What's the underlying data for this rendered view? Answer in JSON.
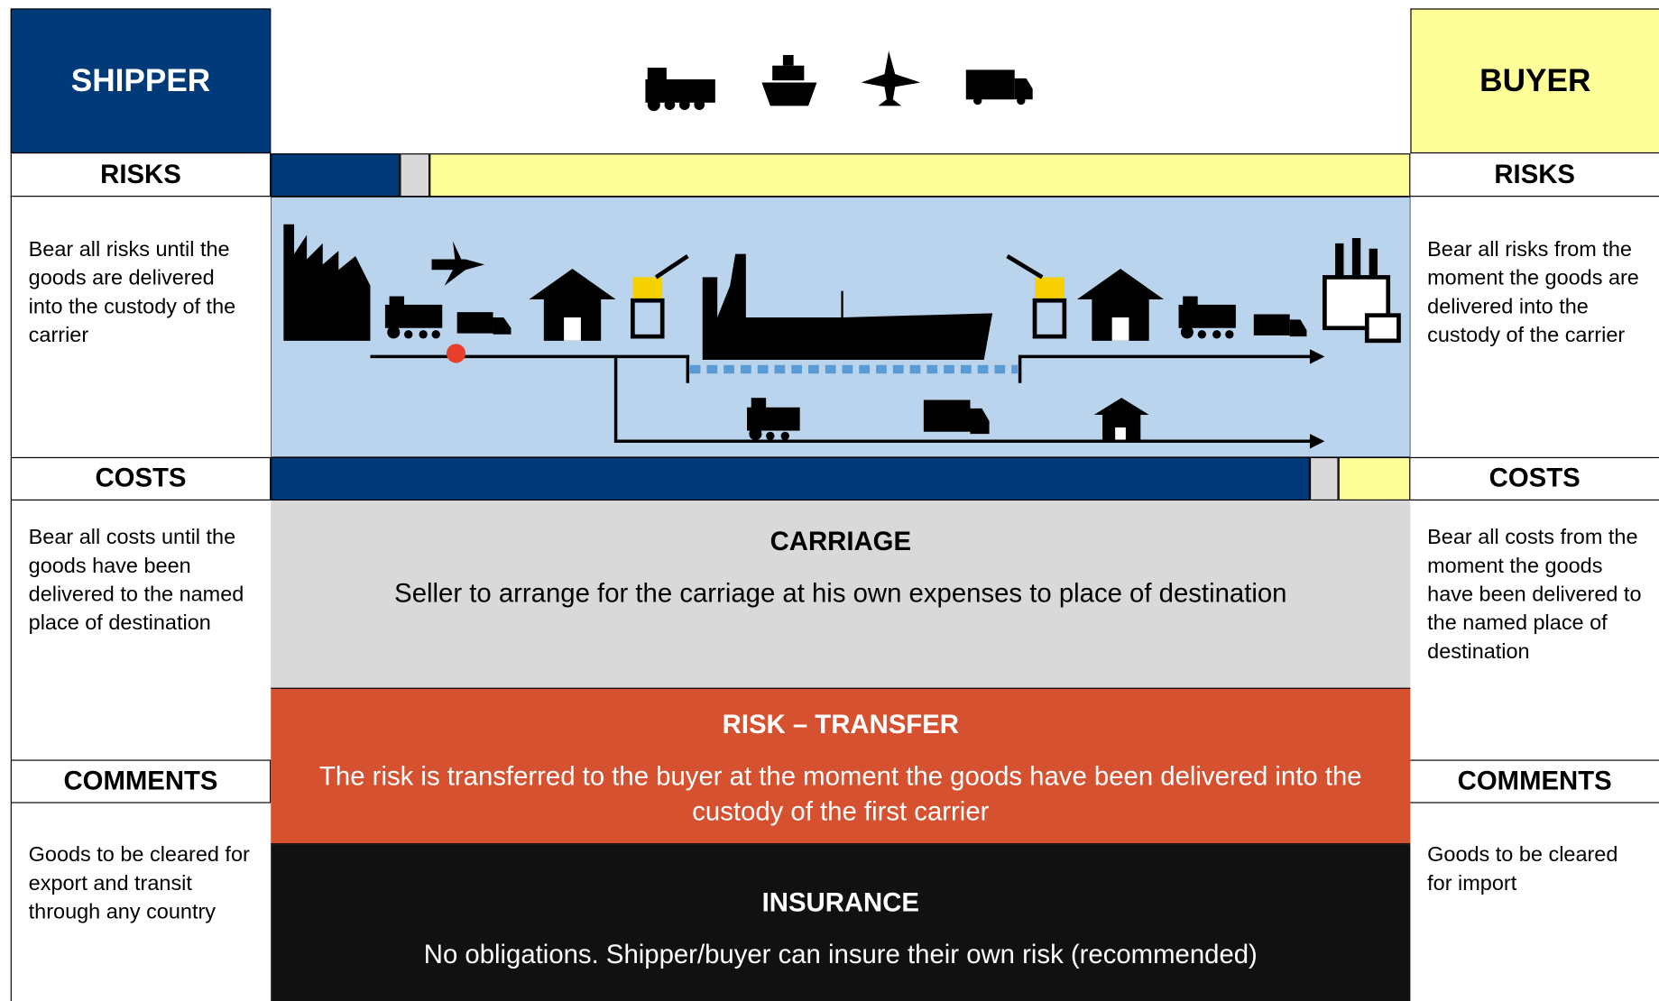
{
  "shipper": {
    "title": "SHIPPER",
    "risks": {
      "heading": "RISKS",
      "text": "Bear all risks until the goods are delivered into the custody of the carrier"
    },
    "costs": {
      "heading": "COSTS",
      "text": "Bear all costs until the goods have been delivered to the named place of destination"
    },
    "comments": {
      "heading": "COMMENTS",
      "text": "Goods to be cleared for export and transit through any country"
    }
  },
  "buyer": {
    "title": "BUYER",
    "risks": {
      "heading": "RISKS",
      "text": "Bear all risks from the moment the goods are delivered into the custody of the carrier"
    },
    "costs": {
      "heading": "COSTS",
      "text": "Bear all costs from the moment the goods have been delivered to the named place of destination"
    },
    "comments": {
      "heading": "COMMENTS",
      "text": "Goods to be cleared for import"
    }
  },
  "carriage": {
    "heading": "CARRIAGE",
    "text": "Seller to arrange for the carriage at his own expenses to place of destination"
  },
  "risk_transfer": {
    "heading": "RISK – TRANSFER",
    "text": "The risk is transferred to the buyer at the moment  the goods have been delivered into the custody of the first carrier"
  },
  "insurance": {
    "heading": "INSURANCE",
    "text": "No obligations. Shipper/buyer can insure their own risk (recommended)"
  }
}
